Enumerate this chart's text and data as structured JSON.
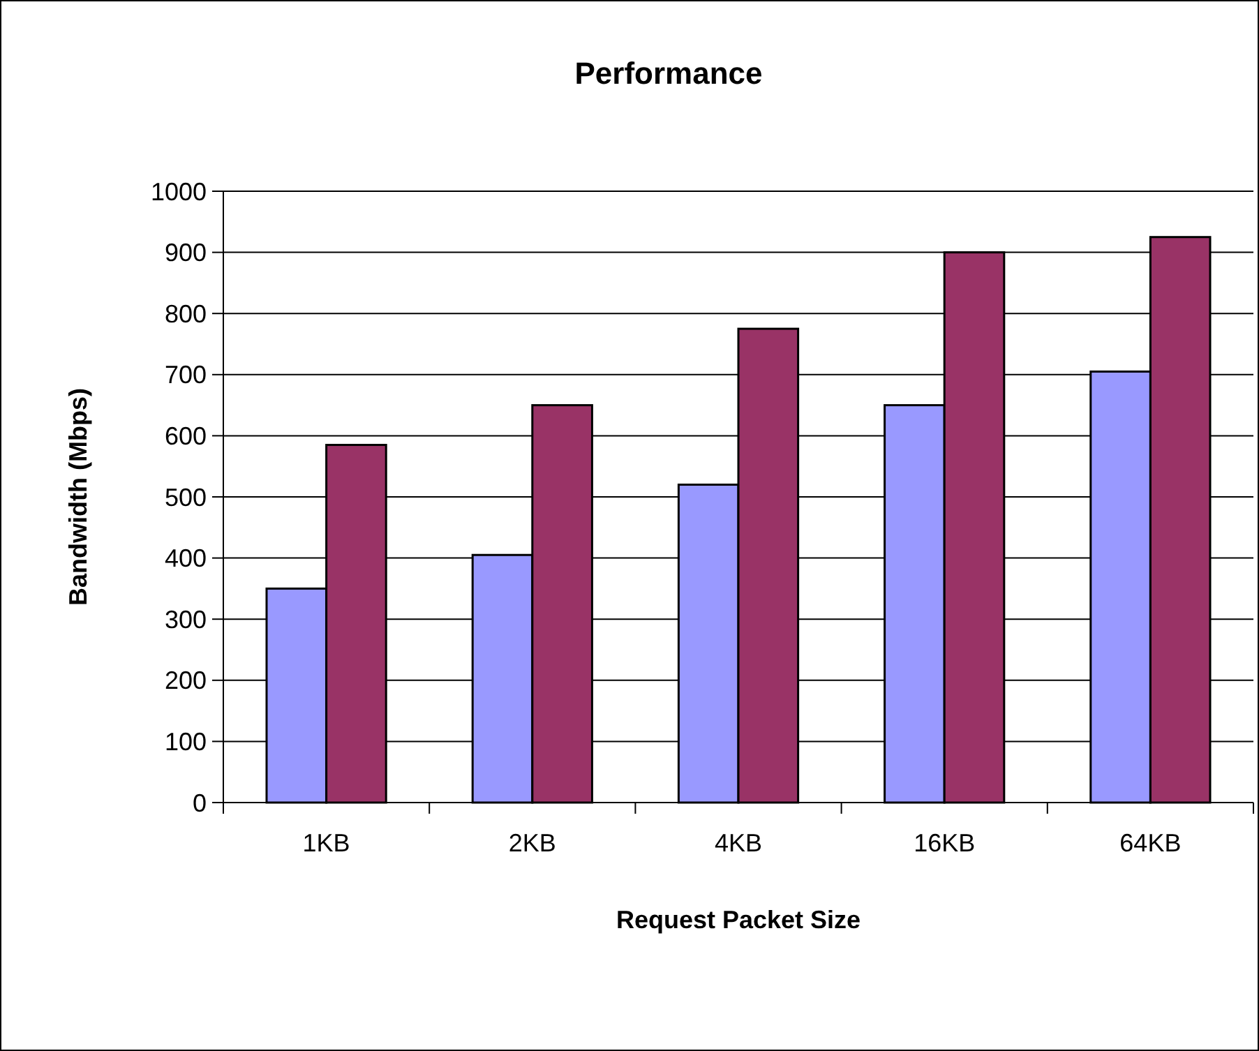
{
  "chart_data": {
    "type": "bar",
    "title": "Performance",
    "xlabel": "Request Packet Size",
    "ylabel": "Bandwidth (Mbps)",
    "categories": [
      "1KB",
      "2KB",
      "4KB",
      "16KB",
      "64KB"
    ],
    "series": [
      {
        "color": "#9999ff",
        "values": [
          350,
          405,
          520,
          650,
          705
        ]
      },
      {
        "color": "#993366",
        "values": [
          585,
          650,
          775,
          900,
          925
        ]
      }
    ],
    "ylim": [
      0,
      1000
    ],
    "yticks": [
      0,
      100,
      200,
      300,
      400,
      500,
      600,
      700,
      800,
      900,
      1000
    ],
    "grid": "y"
  }
}
